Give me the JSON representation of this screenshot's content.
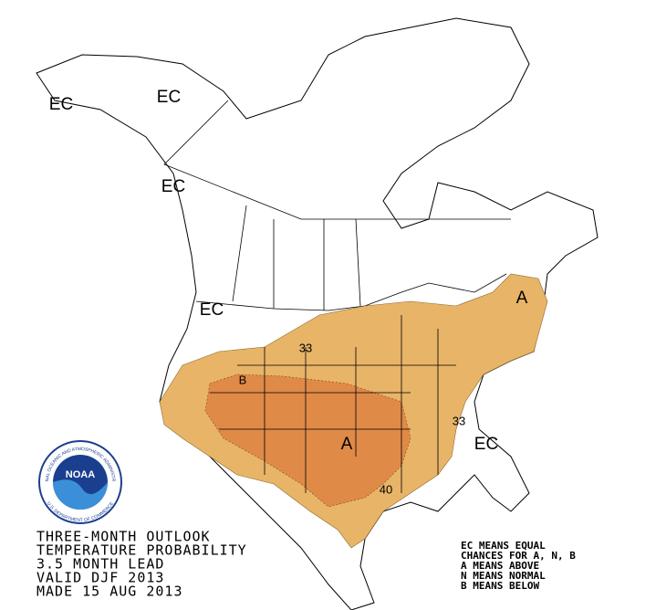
{
  "map": {
    "map_labels": [
      "EC",
      "EC",
      "EC",
      "EC",
      "EC",
      "A",
      "A",
      "B"
    ],
    "contour_labels": [
      "33",
      "40",
      "33"
    ],
    "info_lines": [
      "THREE-MONTH OUTLOOK",
      "TEMPERATURE PROBABILITY",
      "3.5 MONTH LEAD",
      "VALID DJF 2013",
      "MADE 15 AUG 2013"
    ],
    "legend_lines": [
      "EC MEANS EQUAL",
      "CHANCES FOR A, N, B",
      "A MEANS ABOVE",
      "N MEANS NORMAL",
      "B MEANS BELOW"
    ],
    "logo": {
      "name": "NOAA",
      "ring_top": "NATIONAL OCEANIC AND ATMOSPHERIC ADMINISTRATION",
      "ring_bottom": "U.S. DEPARTMENT OF COMMERCE"
    }
  }
}
